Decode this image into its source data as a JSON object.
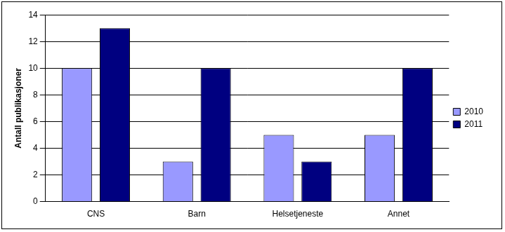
{
  "chart_data": {
    "type": "bar",
    "categories": [
      "CNS",
      "Barn",
      "Helsetjeneste",
      "Annet"
    ],
    "series": [
      {
        "name": "2010",
        "color": "#9999ff",
        "values": [
          10,
          3,
          5,
          5
        ]
      },
      {
        "name": "2011",
        "color": "#000080",
        "values": [
          13,
          10,
          3,
          10
        ]
      }
    ],
    "ylabel": "Antall publikasjoner",
    "ylim": [
      0,
      14
    ],
    "yticks": [
      0,
      2,
      4,
      6,
      8,
      10,
      12,
      14
    ],
    "grid": true,
    "legend": "right"
  }
}
